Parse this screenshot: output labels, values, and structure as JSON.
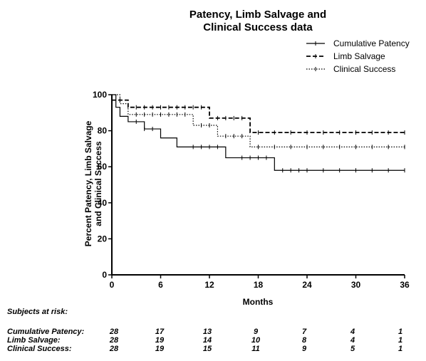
{
  "chart_data": {
    "type": "line",
    "title": [
      "Patency, Limb Salvage and",
      "Clinical Success data"
    ],
    "xlabel": "Months",
    "ylabel": [
      "Percent Patency, Limb Salvage",
      "and Clinical Success"
    ],
    "xlim": [
      0,
      36
    ],
    "ylim": [
      0,
      100
    ],
    "xticks": [
      0,
      6,
      12,
      18,
      24,
      30,
      36
    ],
    "yticks": [
      0,
      20,
      40,
      60,
      80,
      100
    ],
    "grid": false,
    "legend_position": "top-right",
    "series": [
      {
        "name": "Cumulative Patency",
        "style": "solid",
        "x": [
          0,
          0.5,
          1,
          2,
          4,
          6,
          8,
          14,
          20,
          36
        ],
        "y": [
          100,
          93,
          88,
          85,
          81,
          76,
          71,
          65,
          58,
          58
        ],
        "censor_x": [
          3,
          4,
          5,
          10,
          11,
          12,
          13,
          16,
          17,
          18,
          19,
          21,
          22,
          23,
          24,
          26,
          28,
          30,
          32,
          34,
          36
        ]
      },
      {
        "name": "Limb Salvage",
        "style": "dashed",
        "x": [
          0,
          2,
          12,
          17,
          36
        ],
        "y": [
          97,
          93,
          87,
          79,
          79
        ],
        "censor_x": [
          1,
          3,
          4,
          5,
          6,
          7,
          8,
          9,
          10,
          11,
          13,
          14,
          15,
          16,
          18,
          20,
          22,
          24,
          26,
          28,
          30,
          32,
          34,
          36
        ]
      },
      {
        "name": "Clinical Success",
        "style": "dotted",
        "x": [
          0,
          1,
          2,
          10,
          13,
          17,
          36
        ],
        "y": [
          100,
          95,
          89,
          83,
          77,
          71,
          71
        ],
        "censor_x": [
          3,
          4,
          5,
          6,
          7,
          8,
          9,
          11,
          12,
          14,
          15,
          16,
          18,
          20,
          22,
          24,
          26,
          28,
          30,
          32,
          34,
          36
        ]
      }
    ],
    "risk_table": {
      "heading": "Subjects at risk:",
      "months": [
        0,
        6,
        12,
        18,
        24,
        30,
        36
      ],
      "rows": [
        {
          "label": "Cumulative Patency:",
          "values": [
            28,
            17,
            13,
            9,
            7,
            4,
            1
          ]
        },
        {
          "label": "Limb Salvage:",
          "values": [
            28,
            19,
            14,
            10,
            8,
            4,
            1
          ]
        },
        {
          "label": "Clinical Success:",
          "values": [
            28,
            19,
            15,
            11,
            9,
            5,
            1
          ]
        }
      ]
    }
  }
}
